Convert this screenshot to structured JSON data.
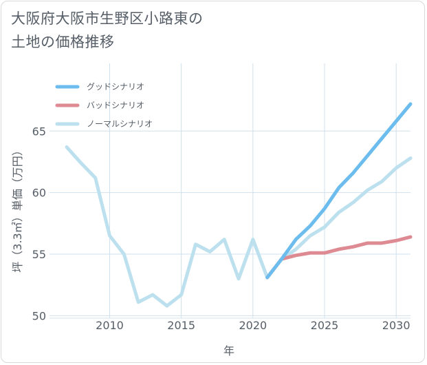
{
  "title": {
    "line1": "大阪府大阪市生野区小路東の",
    "line2": "土地の価格推移"
  },
  "chart_data": {
    "type": "line",
    "xlabel": "年",
    "ylabel": "坪（3.3㎡）単価（万円）",
    "xlim": [
      2005.8,
      2031
    ],
    "ylim": [
      49.8,
      70.5
    ],
    "xticks": [
      2010,
      2015,
      2020,
      2025,
      2030
    ],
    "xtick_labels": [
      "2010",
      "2015",
      "2020",
      "2025",
      "2030"
    ],
    "yticks": [
      50,
      55,
      60,
      65
    ],
    "ytick_labels": [
      "50",
      "55",
      "60",
      "65"
    ],
    "grid": true,
    "legend_position": "top-left",
    "series": [
      {
        "name": "グッドシナリオ",
        "color": "#6cbdee",
        "points": [
          [
            2021,
            53.1
          ],
          [
            2022,
            54.6
          ],
          [
            2023,
            56.2
          ],
          [
            2024,
            57.3
          ],
          [
            2025,
            58.7
          ],
          [
            2026,
            60.4
          ],
          [
            2027,
            61.6
          ],
          [
            2028,
            63.0
          ],
          [
            2029,
            64.4
          ],
          [
            2030,
            65.8
          ],
          [
            2031,
            67.2
          ]
        ]
      },
      {
        "name": "バッドシナリオ",
        "color": "#dd8a93",
        "points": [
          [
            2021,
            53.1
          ],
          [
            2022,
            54.6
          ],
          [
            2023,
            54.9
          ],
          [
            2024,
            55.1
          ],
          [
            2025,
            55.1
          ],
          [
            2026,
            55.4
          ],
          [
            2027,
            55.6
          ],
          [
            2028,
            55.9
          ],
          [
            2029,
            55.9
          ],
          [
            2030,
            56.1
          ],
          [
            2031,
            56.4
          ]
        ]
      },
      {
        "name": "ノーマルシナリオ",
        "color": "#bde0ef",
        "points": [
          [
            2007,
            63.7
          ],
          [
            2008,
            62.4
          ],
          [
            2009,
            61.2
          ],
          [
            2010,
            56.5
          ],
          [
            2011,
            55.0
          ],
          [
            2012,
            51.1
          ],
          [
            2013,
            51.7
          ],
          [
            2014,
            50.8
          ],
          [
            2015,
            51.7
          ],
          [
            2016,
            55.8
          ],
          [
            2017,
            55.2
          ],
          [
            2018,
            56.2
          ],
          [
            2019,
            53.0
          ],
          [
            2020,
            56.2
          ],
          [
            2021,
            53.1
          ],
          [
            2022,
            54.6
          ],
          [
            2023,
            55.4
          ],
          [
            2024,
            56.5
          ],
          [
            2025,
            57.2
          ],
          [
            2026,
            58.4
          ],
          [
            2027,
            59.2
          ],
          [
            2028,
            60.2
          ],
          [
            2029,
            60.9
          ],
          [
            2030,
            62.0
          ],
          [
            2031,
            62.8
          ]
        ]
      }
    ]
  }
}
